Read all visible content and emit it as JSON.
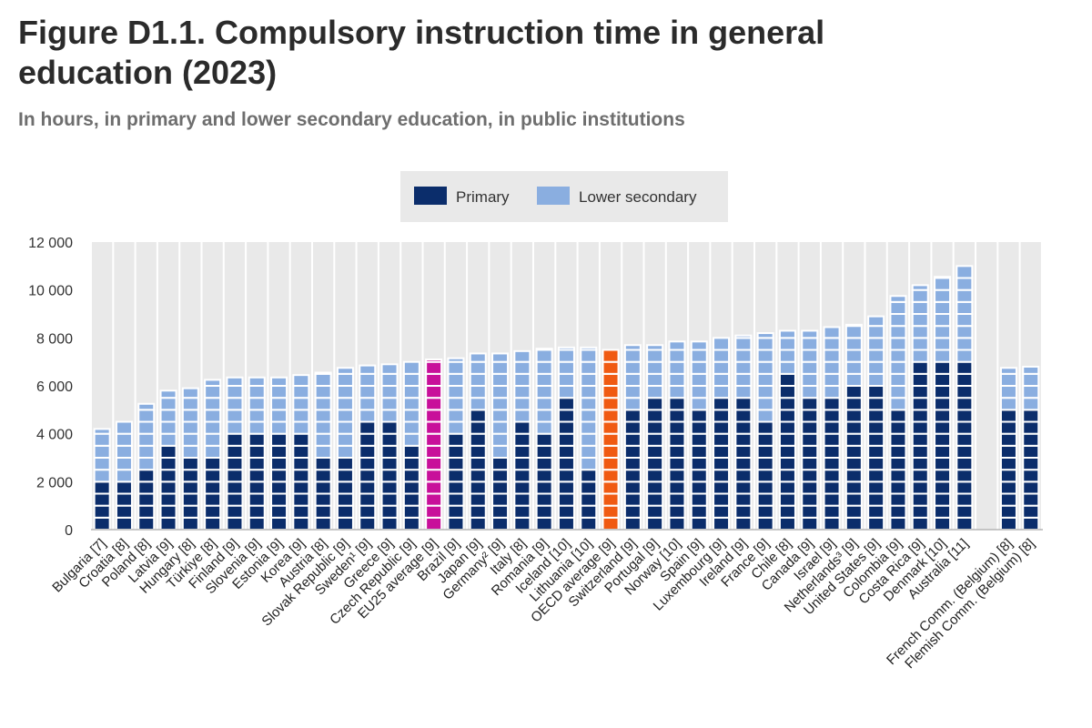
{
  "title": "Figure D1.1. Compulsory instruction time in general education (2023)",
  "subtitle": "In hours, in primary and lower secondary education, in public institutions",
  "colors": {
    "primary": "#0b2d6b",
    "lower_secondary": "#8aaee0",
    "eu_average": "#c8109a",
    "oecd_average": "#f05a12",
    "background_band": "#e9e9e9"
  },
  "chart_data": {
    "type": "bar",
    "stacked": true,
    "ylim": [
      0,
      12000
    ],
    "yticks": [
      0,
      2000,
      4000,
      6000,
      8000,
      10000,
      12000
    ],
    "ytick_labels": [
      "0",
      "2 000",
      "4 000",
      "6 000",
      "8 000",
      "10 000",
      "12 000"
    ],
    "grid": false,
    "legend": {
      "position": "top-center",
      "entries": [
        "Primary",
        "Lower secondary"
      ]
    },
    "categories": [
      "Bulgaria [7]",
      "Croatia [8]",
      "Poland [8]",
      "Latvia [9]",
      "Hungary [8]",
      "Türkiye [8]",
      "Finland [9]",
      "Slovenia [9]",
      "Estonia [9]",
      "Korea [9]",
      "Austria [8]",
      "Slovak Republic [9]",
      "Sweden¹ [9]",
      "Greece [9]",
      "Czech Republic [9]",
      "EU25 average [9]",
      "Brazil [9]",
      "Japan [9]",
      "Germany² [9]",
      "Italy [8]",
      "Romania [9]",
      "Iceland [10]",
      "Lithuania [10]",
      "OECD average [9]",
      "Switzerland [9]",
      "Portugal [9]",
      "Norway [10]",
      "Spain [9]",
      "Luxembourg [9]",
      "Ireland [9]",
      "France [9]",
      "Chile [8]",
      "Canada [9]",
      "Israel [9]",
      "Netherlands³ [9]",
      "United States [9]",
      "Colombia [9]",
      "Costa Rica [9]",
      "Denmark [10]",
      "Australia [11]",
      "",
      "French Comm. (Belgium) [8]",
      "Flemish Comm. (Belgium) [8]"
    ],
    "highlight": {
      "EU25 average [9]": "eu_average",
      "OECD average [9]": "oecd_average"
    },
    "series": [
      {
        "name": "Primary",
        "values": [
          2000,
          1900,
          2250,
          3450,
          2700,
          2850,
          3900,
          4000,
          3950,
          3900,
          2750,
          2700,
          4250,
          4400,
          3450,
          7100,
          4000,
          4600,
          2850,
          4500,
          3600,
          5100,
          2500,
          7500,
          4800,
          5200,
          5250,
          4700,
          5500,
          5450,
          4300,
          6150,
          5450,
          5450,
          5600,
          5800,
          4950,
          6800,
          7000,
          7000,
          null,
          4950,
          4900
        ]
      },
      {
        "name": "Lower secondary",
        "values": [
          2200,
          2600,
          3000,
          2350,
          3200,
          3400,
          2450,
          2350,
          2400,
          2550,
          3800,
          4050,
          2600,
          2500,
          3550,
          0,
          3150,
          2750,
          4500,
          2950,
          3950,
          2500,
          5100,
          0,
          2900,
          2500,
          2600,
          3150,
          2500,
          2650,
          3900,
          2150,
          2850,
          3000,
          2950,
          3100,
          4800,
          3400,
          3550,
          4000,
          null,
          1800,
          1900
        ]
      }
    ]
  }
}
